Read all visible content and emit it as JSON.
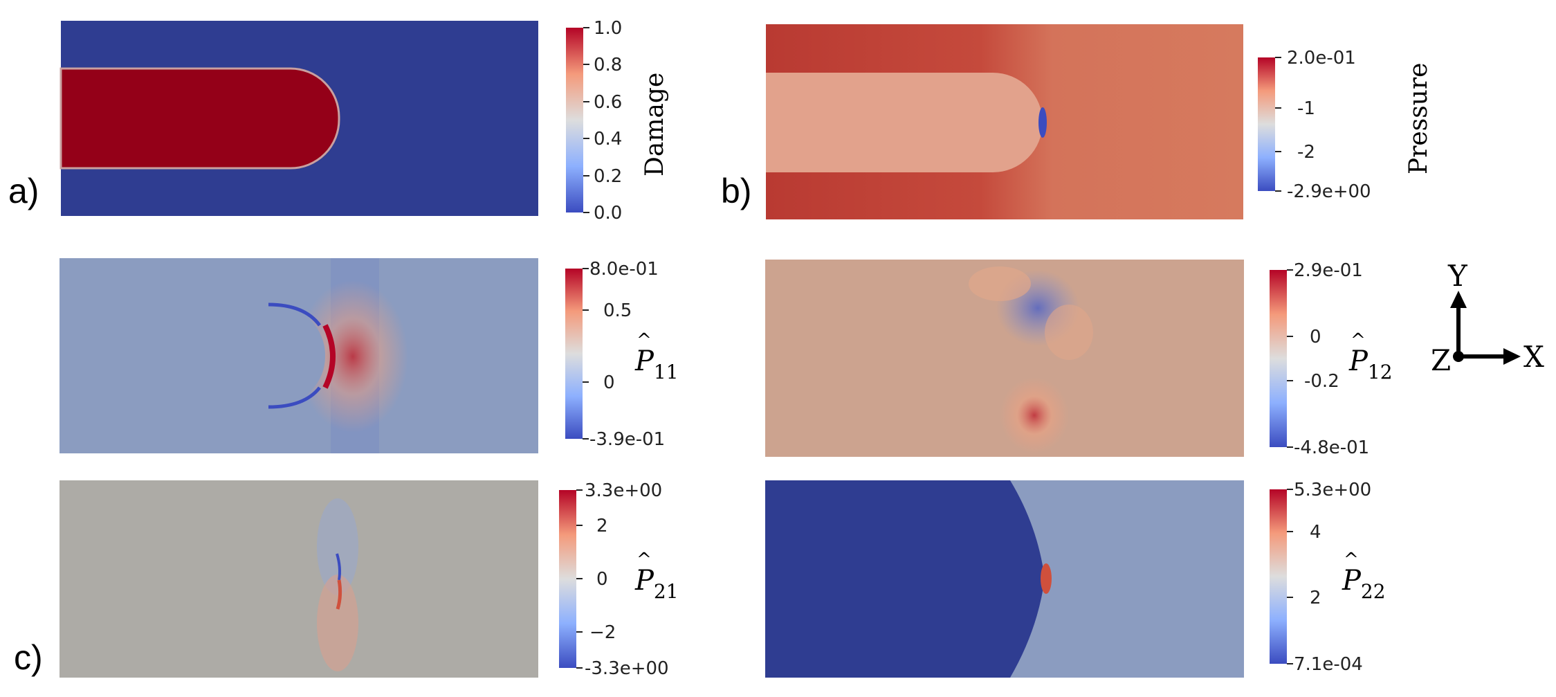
{
  "panels": {
    "a": {
      "label": "a)",
      "colorbar": {
        "title": "Damage",
        "ticks": [
          "1.0",
          "0.8",
          "0.6",
          "0.4",
          "0.2",
          "0.0"
        ]
      }
    },
    "b": {
      "label": "b)",
      "colorbar": {
        "title": "Pressure",
        "ticks": [
          "2.0e-01",
          "-1",
          "-2",
          "-2.9e+00"
        ]
      }
    },
    "c": {
      "label": "c)"
    },
    "p11": {
      "symbol": "P",
      "subscript": "11",
      "ticks": [
        "8.0e-01",
        "0.5",
        "0",
        "-3.9e-01"
      ]
    },
    "p12": {
      "symbol": "P",
      "subscript": "12",
      "ticks": [
        "2.9e-01",
        "0",
        "-0.2",
        "-4.8e-01"
      ]
    },
    "p21": {
      "symbol": "P",
      "subscript": "21",
      "ticks": [
        "3.3e+00",
        "2",
        "0",
        "−2",
        "-3.3e+00"
      ]
    },
    "p22": {
      "symbol": "P",
      "subscript": "22",
      "ticks": [
        "5.3e+00",
        "4",
        "2",
        "7.1e-04"
      ]
    }
  },
  "axes_triad": {
    "y": "Y",
    "x": "X",
    "z": "Z"
  },
  "colors": {
    "deep_blue": "#2f3d91",
    "deep_red": "#940018",
    "cmap_blue": "#3b4cc0",
    "cmap_white": "#dddddd",
    "cmap_red": "#b40426"
  }
}
